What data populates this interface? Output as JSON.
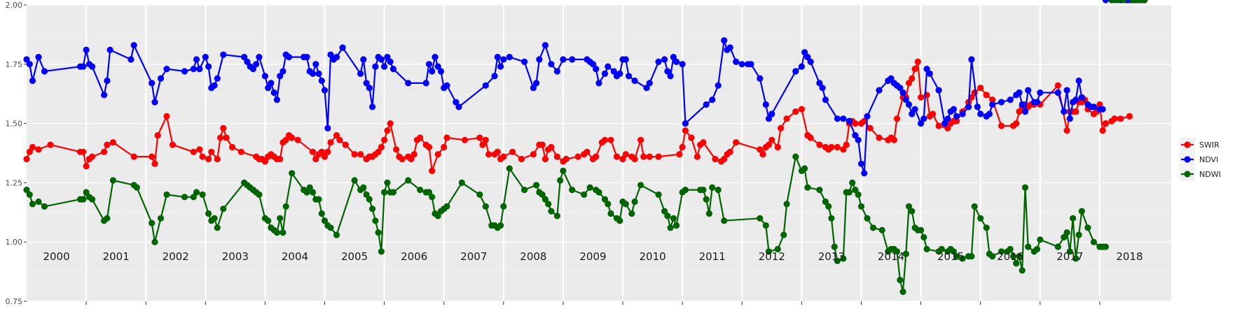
{
  "chart_data": {
    "type": "line",
    "ylim": [
      0.75,
      2.0
    ],
    "xlim": [
      2000.0,
      2019.2
    ],
    "y_ticks": [
      "0.75",
      "1.00",
      "1.25",
      "1.50",
      "1.75",
      "2.00"
    ],
    "y_tick_values": [
      0.75,
      1.0,
      1.25,
      1.5,
      1.75,
      2.0
    ],
    "year_labels": [
      "2000",
      "2001",
      "2002",
      "2003",
      "2004",
      "2005",
      "2006",
      "2007",
      "2008",
      "2009",
      "2010",
      "2011",
      "2012",
      "2013",
      "2014",
      "2015",
      "2016",
      "2017",
      "2018"
    ],
    "year_separators": [
      2001,
      2002,
      2003,
      2004,
      2005,
      2006,
      2007,
      2008,
      2009,
      2010,
      2011,
      2012,
      2013,
      2014,
      2015,
      2016,
      2017,
      2018
    ],
    "grid": true,
    "legend_position": "right",
    "series": [
      {
        "name": "SWIR",
        "color": "#ff0000",
        "x": [
          2000.0,
          2000.1,
          2000.2,
          2000.4,
          2000.9,
          2001.0,
          2001.05,
          2001.1,
          2001.5,
          2001.6,
          2001.7,
          2001.8,
          2002.5,
          2002.6,
          2002.8,
          2002.9,
          2003.0,
          2003.1,
          2003.2,
          2003.4,
          2003.6,
          2003.7,
          2003.8,
          2004.0,
          2004.1,
          2004.2,
          2004.3,
          2004.6,
          2004.9,
          2005.05,
          2005.15,
          2005.3,
          2005.5,
          2005.7,
          2005.9,
          2006.0,
          2006.1,
          2006.3,
          2006.5,
          2006.6,
          2006.7,
          2006.8,
          2006.9,
          2007.0,
          2007.1,
          2007.5,
          2007.65,
          2007.7,
          2007.8,
          2007.9,
          2008.0,
          2008.1,
          2008.3,
          2008.5,
          2008.6,
          2008.7,
          2008.8,
          2008.9,
          2009.1,
          2009.2,
          2009.3,
          2009.4,
          2009.5,
          2009.6,
          2009.7,
          2009.8,
          2009.9,
          2010.0,
          2010.2,
          2010.4,
          2010.5,
          2010.6,
          2010.7,
          2010.8,
          2010.9,
          2011.0,
          2011.1,
          2011.2,
          2011.5,
          2011.6,
          2011.7,
          2011.8,
          2012.3,
          2012.4,
          2012.5,
          2012.6,
          2012.7,
          2012.8,
          2012.9,
          2013.0,
          2013.1,
          2013.2,
          2013.3,
          2013.5,
          2013.6,
          2013.7,
          2013.8,
          2013.9,
          2014.0,
          2014.2,
          2014.3,
          2014.4,
          2014.5,
          2014.6,
          2014.7,
          2014.8,
          2014.9,
          2015.0,
          2015.05,
          2015.1,
          2015.3,
          2015.4,
          2015.5,
          2015.6,
          2015.7,
          2015.8,
          2015.9,
          2016.0,
          2016.1,
          2016.2,
          2016.3,
          2016.4,
          2016.5,
          2016.6,
          2016.7,
          2016.8,
          2016.9,
          2017.0,
          2017.1,
          2017.2,
          2017.3,
          2017.4,
          2017.5,
          2017.6,
          2017.7,
          2017.8,
          2017.9,
          2018.0,
          2018.1,
          2018.2,
          2018.3,
          2018.5,
          2018.6,
          2018.7,
          2018.8,
          2018.9,
          2019.0,
          2019.1
        ],
        "y": [
          1.34,
          1.38,
          1.4,
          1.39,
          1.41,
          1.38,
          1.38,
          1.31,
          1.35,
          1.4,
          1.42,
          1.36,
          1.36,
          1.33,
          1.45,
          1.53,
          1.41,
          1.41,
          1.38,
          1.39,
          1.35,
          1.35,
          1.38,
          1.44,
          1.48,
          1.43,
          1.4,
          1.37,
          1.36,
          1.35,
          1.34,
          1.37,
          1.35,
          1.36,
          1.35,
          1.35,
          1.42,
          1.43,
          1.45,
          1.44,
          1.38,
          1.35,
          1.37,
          1.38,
          1.36,
          1.38,
          1.42,
          1.43,
          1.44,
          1.4,
          1.39,
          1.48,
          1.43,
          1.37,
          1.37,
          1.35,
          1.36,
          1.49,
          1.47,
          1.5,
          1.39,
          1.36,
          1.35,
          1.36,
          1.36,
          1.37,
          1.35,
          1.42,
          1.43,
          1.41,
          1.3,
          1.37,
          1.4,
          1.44,
          1.43,
          1.44,
          1.41,
          1.38,
          1.37,
          1.38,
          1.35,
          1.36,
          1.38,
          1.37,
          1.4,
          1.41,
          1.37,
          1.35,
          1.34,
          1.35,
          1.38,
          1.42,
          1.39,
          1.4,
          1.38,
          1.37,
          1.38,
          1.39,
          1.38,
          1.36,
          1.37,
          1.4,
          1.41,
          1.4,
          1.43,
          1.44,
          1.43,
          1.36,
          1.37,
          1.4,
          1.41,
          1.38,
          1.37,
          1.36,
          1.37,
          1.38,
          1.4,
          1.43,
          1.42,
          1.4,
          1.39,
          1.38,
          1.36,
          1.38,
          1.35,
          1.36,
          1.38,
          1.4,
          1.42,
          1.41,
          1.4,
          1.39,
          1.38,
          1.37,
          1.36,
          1.38,
          1.39,
          1.4,
          1.41,
          1.4,
          1.44,
          1.39,
          1.46,
          1.41,
          1.42,
          1.41,
          1.4,
          1.39
        ],
        "_note": "placeholder"
      }
    ]
  }
}
